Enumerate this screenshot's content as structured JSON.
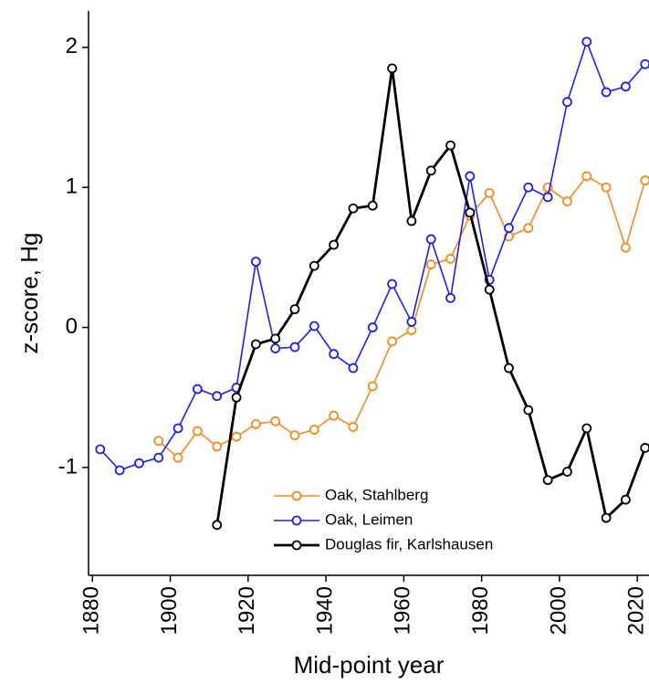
{
  "chart_data": {
    "type": "line",
    "x_label": "Mid-point year",
    "y_label": "z-score, Hg",
    "x": [
      1882,
      1887,
      1892,
      1897,
      1902,
      1907,
      1912,
      1917,
      1922,
      1927,
      1932,
      1937,
      1942,
      1947,
      1952,
      1957,
      1962,
      1967,
      1972,
      1977,
      1982,
      1987,
      1992,
      1997,
      2002,
      2007,
      2012,
      2017,
      2022
    ],
    "series": [
      {
        "name": "Oak, Stahlberg",
        "color": "#f28a1e",
        "values": [
          null,
          null,
          null,
          -0.81,
          -0.93,
          -0.74,
          -0.85,
          -0.78,
          -0.69,
          -0.67,
          -0.77,
          -0.73,
          -0.63,
          -0.71,
          -0.42,
          -0.1,
          -0.02,
          0.45,
          0.49,
          0.8,
          0.96,
          0.65,
          0.71,
          1.0,
          0.9,
          1.08,
          1.0,
          0.57,
          1.05
        ]
      },
      {
        "name": "Oak, Leimen",
        "color": "#1f1fe6",
        "values": [
          -0.87,
          -1.02,
          -0.97,
          -0.93,
          -0.72,
          -0.44,
          -0.49,
          -0.43,
          0.47,
          -0.15,
          -0.14,
          0.01,
          -0.19,
          -0.29,
          0.0,
          0.31,
          0.04,
          0.63,
          0.21,
          1.08,
          0.34,
          0.71,
          1.0,
          0.93,
          1.61,
          2.04,
          1.68,
          1.72,
          1.88
        ]
      },
      {
        "name": "Douglas fir, Karlshausen",
        "color": "#000000",
        "values": [
          null,
          null,
          null,
          null,
          null,
          null,
          -1.41,
          -0.5,
          -0.12,
          -0.08,
          0.13,
          0.44,
          0.59,
          0.85,
          0.87,
          1.85,
          0.76,
          1.12,
          1.3,
          0.82,
          0.27,
          -0.29,
          -0.59,
          -1.09,
          -1.03,
          -0.72,
          -1.36,
          -1.23,
          -0.86
        ]
      }
    ],
    "xlim": [
      1879,
      2023
    ],
    "ylim": [
      -1.77,
      2.26
    ],
    "xticks": [
      1880,
      1900,
      1920,
      1940,
      1960,
      1980,
      2000,
      2020
    ],
    "yticks": [
      -1,
      0,
      1,
      2
    ],
    "legend": "lower center",
    "grid": false
  }
}
